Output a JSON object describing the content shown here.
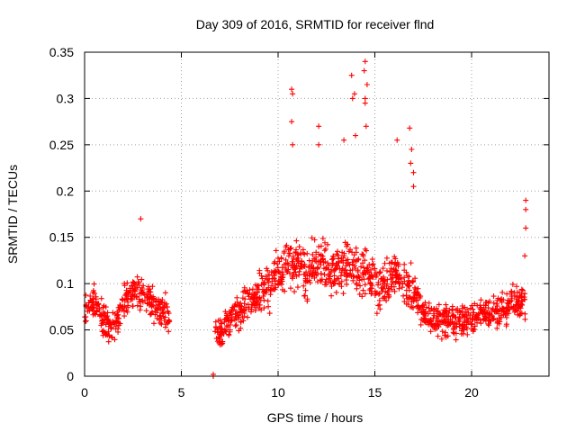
{
  "chart_data": {
    "type": "scatter",
    "title": "Day 309 of 2016, SRMTID for receiver flnd",
    "xlabel": "GPS time / hours",
    "ylabel": "SRMTID / TECUs",
    "xlim": [
      0,
      24
    ],
    "ylim": [
      0,
      0.35
    ],
    "x_ticks": [
      0,
      5,
      10,
      15,
      20
    ],
    "y_ticks": [
      0,
      0.05,
      0.1,
      0.15,
      0.2,
      0.25,
      0.3,
      0.35
    ],
    "x_tick_labels": [
      "0",
      "5",
      "10",
      "15",
      "20"
    ],
    "y_tick_labels": [
      "0",
      "0.05",
      "0.1",
      "0.15",
      "0.2",
      "0.25",
      "0.3",
      "0.35"
    ],
    "grid": true,
    "marker": "plus",
    "color": "#ff0000",
    "envelope_note": "",
    "series": [
      {
        "profile": [
          [
            0.0,
            0.07
          ],
          [
            0.5,
            0.08
          ],
          [
            1.0,
            0.06
          ],
          [
            1.5,
            0.05
          ],
          [
            2.0,
            0.08
          ],
          [
            2.5,
            0.09
          ],
          [
            3.0,
            0.09
          ],
          [
            3.5,
            0.08
          ],
          [
            4.0,
            0.07
          ],
          [
            4.4,
            0.06
          ],
          [
            6.7,
            0.05
          ],
          [
            7.0,
            0.05
          ],
          [
            7.5,
            0.06
          ],
          [
            8.0,
            0.07
          ],
          [
            8.5,
            0.08
          ],
          [
            9.0,
            0.09
          ],
          [
            9.5,
            0.1
          ],
          [
            10.0,
            0.11
          ],
          [
            10.5,
            0.12
          ],
          [
            11.0,
            0.12
          ],
          [
            11.5,
            0.11
          ],
          [
            12.0,
            0.12
          ],
          [
            12.5,
            0.12
          ],
          [
            13.0,
            0.11
          ],
          [
            13.5,
            0.12
          ],
          [
            14.0,
            0.12
          ],
          [
            14.5,
            0.11
          ],
          [
            15.0,
            0.1
          ],
          [
            15.5,
            0.1
          ],
          [
            16.0,
            0.11
          ],
          [
            16.5,
            0.1
          ],
          [
            17.0,
            0.09
          ],
          [
            17.5,
            0.07
          ],
          [
            18.0,
            0.06
          ],
          [
            18.5,
            0.06
          ],
          [
            19.0,
            0.06
          ],
          [
            19.5,
            0.06
          ],
          [
            20.0,
            0.06
          ],
          [
            20.5,
            0.07
          ],
          [
            21.0,
            0.07
          ],
          [
            21.5,
            0.07
          ],
          [
            22.0,
            0.08
          ],
          [
            22.5,
            0.08
          ],
          [
            22.8,
            0.08
          ]
        ],
        "spread": 0.04,
        "outliers": [
          [
            2.9,
            0.17
          ],
          [
            10.7,
            0.31
          ],
          [
            10.75,
            0.305
          ],
          [
            10.7,
            0.275
          ],
          [
            10.75,
            0.25
          ],
          [
            12.1,
            0.27
          ],
          [
            12.1,
            0.25
          ],
          [
            13.4,
            0.255
          ],
          [
            13.8,
            0.325
          ],
          [
            13.85,
            0.3
          ],
          [
            13.95,
            0.305
          ],
          [
            14.0,
            0.26
          ],
          [
            14.5,
            0.34
          ],
          [
            14.45,
            0.33
          ],
          [
            14.6,
            0.315
          ],
          [
            14.5,
            0.3
          ],
          [
            14.5,
            0.295
          ],
          [
            14.55,
            0.27
          ],
          [
            16.15,
            0.255
          ],
          [
            16.8,
            0.268
          ],
          [
            16.9,
            0.245
          ],
          [
            16.85,
            0.23
          ],
          [
            17.0,
            0.22
          ],
          [
            17.0,
            0.205
          ],
          [
            22.8,
            0.19
          ],
          [
            22.8,
            0.18
          ],
          [
            22.8,
            0.16
          ],
          [
            22.75,
            0.13
          ],
          [
            6.65,
            0.0
          ],
          [
            6.65,
            0.002
          ]
        ]
      }
    ]
  }
}
